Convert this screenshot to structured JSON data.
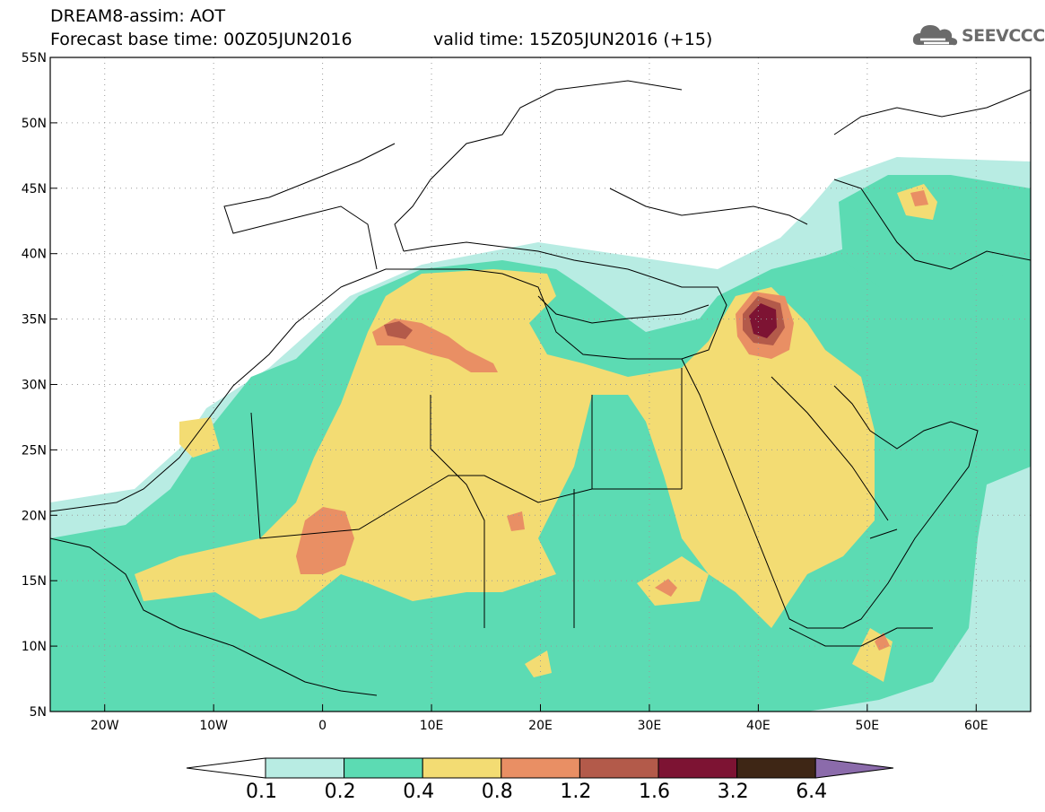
{
  "header": {
    "model_line": "DREAM8-assim: AOT",
    "base_time": "Forecast base time: 00Z05JUN2016",
    "valid_time": "valid time: 15Z05JUN2016 (+15)"
  },
  "logo": {
    "text": "SEEVCCC",
    "icon": "cloud-logo-icon",
    "color": "#6b6b6b"
  },
  "map": {
    "lon_range": [
      -25,
      65
    ],
    "lat_range": [
      5,
      55
    ],
    "lat_labels": [
      "55N",
      "50N",
      "45N",
      "40N",
      "35N",
      "30N",
      "25N",
      "20N",
      "15N",
      "10N",
      "5N"
    ],
    "lon_labels": [
      "20W",
      "10W",
      "0",
      "10E",
      "20E",
      "30E",
      "40E",
      "50E",
      "60E"
    ]
  },
  "colorbar": {
    "levels": [
      "0.1",
      "0.2",
      "0.4",
      "0.8",
      "1.2",
      "1.6",
      "3.2",
      "6.4"
    ],
    "colors": [
      "#ffffff",
      "#b8ece3",
      "#5cdbb3",
      "#f3dc73",
      "#e98f64",
      "#b35a4a",
      "#7d1333",
      "#3e2615",
      "#8b6bab"
    ]
  }
}
